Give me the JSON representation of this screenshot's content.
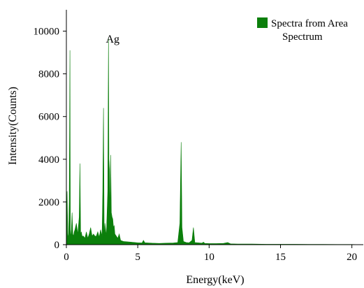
{
  "chart_data": {
    "type": "area",
    "xlabel": "Energy(keV)",
    "ylabel": "Intensity(Counts)",
    "xlim": [
      0,
      20.8
    ],
    "ylim": [
      0,
      11000
    ],
    "xticks": [
      0,
      5,
      10,
      15,
      20
    ],
    "yticks": [
      0,
      2000,
      4000,
      6000,
      8000,
      10000
    ],
    "grid": false,
    "legend_position": "top-right",
    "series": [
      {
        "name": "Spectra from Area",
        "legend_label_line2": "Spectrum",
        "color": "#0b7f0b",
        "x": [
          0.0,
          0.05,
          0.1,
          0.15,
          0.2,
          0.25,
          0.28,
          0.35,
          0.4,
          0.45,
          0.5,
          0.55,
          0.6,
          0.7,
          0.8,
          0.9,
          0.95,
          1.0,
          1.05,
          1.1,
          1.2,
          1.3,
          1.4,
          1.5,
          1.6,
          1.7,
          1.8,
          1.9,
          2.0,
          2.1,
          2.2,
          2.3,
          2.4,
          2.5,
          2.55,
          2.6,
          2.65,
          2.7,
          2.8,
          2.9,
          2.95,
          2.98,
          3.02,
          3.05,
          3.1,
          3.15,
          3.2,
          3.25,
          3.3,
          3.35,
          3.4,
          3.5,
          3.6,
          3.7,
          3.8,
          4.0,
          4.5,
          5.0,
          5.3,
          5.4,
          5.5,
          6.0,
          6.5,
          7.0,
          7.5,
          7.8,
          7.95,
          8.04,
          8.1,
          8.2,
          8.4,
          8.6,
          8.8,
          8.9,
          9.0,
          9.2,
          9.5,
          9.6,
          9.7,
          10.0,
          10.5,
          11.0,
          11.3,
          11.5,
          12.0,
          13.0,
          14.0,
          15.0,
          16.0,
          17.0,
          18.0,
          19.0,
          20.0,
          20.8
        ],
        "values": [
          0,
          2500,
          500,
          300,
          2000,
          9100,
          300,
          700,
          1500,
          500,
          400,
          600,
          700,
          1000,
          500,
          1300,
          3800,
          500,
          600,
          400,
          400,
          300,
          600,
          300,
          500,
          800,
          400,
          500,
          400,
          400,
          600,
          350,
          700,
          400,
          2500,
          6400,
          300,
          1000,
          400,
          2500,
          9700,
          4000,
          3500,
          1200,
          4200,
          1500,
          1300,
          1200,
          800,
          900,
          500,
          400,
          300,
          500,
          200,
          150,
          120,
          90,
          80,
          200,
          90,
          70,
          60,
          70,
          80,
          100,
          1000,
          4800,
          800,
          150,
          100,
          90,
          200,
          800,
          100,
          90,
          70,
          120,
          60,
          50,
          50,
          60,
          100,
          40,
          30,
          30,
          20,
          20,
          20,
          15,
          15,
          10,
          10,
          0
        ]
      }
    ],
    "annotations": [
      {
        "text": "Ag",
        "x": 2.95,
        "y": 9600
      }
    ]
  }
}
